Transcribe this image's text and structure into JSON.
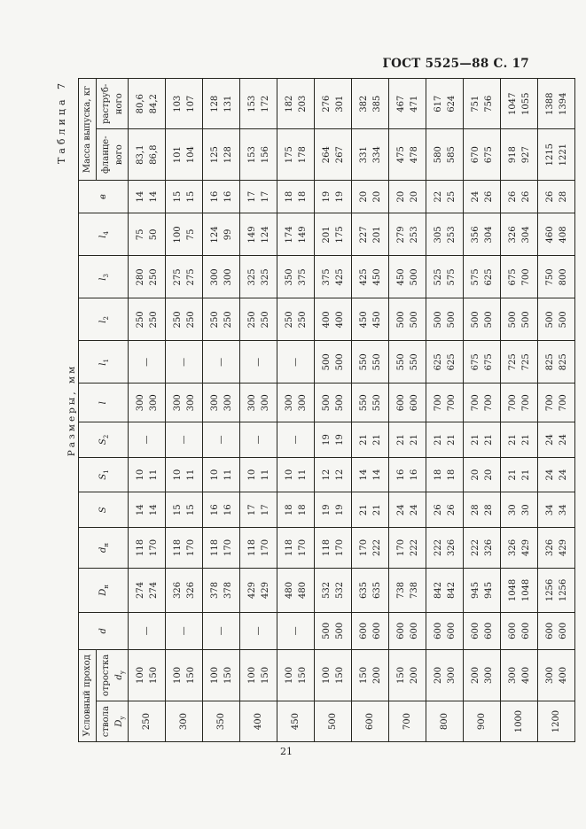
{
  "page": {
    "doc_ref": "ГОСТ 5525—88 С. 17",
    "page_number": "21",
    "table_caption": "Таблица 7",
    "units_label": "Размеры, мм"
  },
  "table": {
    "headers": {
      "group_pass": "Условный проход",
      "stvola": {
        "prefix": "ствола ",
        "main": "D",
        "sub": "у"
      },
      "otrostka": {
        "prefix": "отростка ",
        "main": "d",
        "sub": "у"
      },
      "d": {
        "main": "d",
        "sub": ""
      },
      "Dn": {
        "main": "D",
        "sub": "н"
      },
      "dn": {
        "main": "d",
        "sub": "н"
      },
      "S": {
        "main": "S",
        "sub": ""
      },
      "S1": {
        "main": "S",
        "sub": "1"
      },
      "S2": {
        "main": "S",
        "sub": "2"
      },
      "l": {
        "main": "l",
        "sub": ""
      },
      "l1": {
        "main": "l",
        "sub": "1"
      },
      "l2": {
        "main": "l",
        "sub": "2"
      },
      "l3": {
        "main": "l",
        "sub": "3"
      },
      "l4": {
        "main": "l",
        "sub": "4"
      },
      "v": "в",
      "group_mass": "Масса выпуска, кг",
      "mass_fl": "фланце-\nвого",
      "mass_r": "раструб-\nного"
    },
    "col_order": [
      "dy",
      "dotr",
      "d",
      "Dn",
      "dn",
      "S",
      "S1",
      "S2",
      "l",
      "l1",
      "l2",
      "l3",
      "l4",
      "v",
      "mfl",
      "mr"
    ],
    "rows": [
      {
        "dy": "250",
        "dotr": "100\n150",
        "d": "—",
        "Dn": "274\n274",
        "dn": "118\n170",
        "S": "14\n14",
        "S1": "10\n11",
        "S2": "—",
        "l": "300\n300",
        "l1": "—",
        "l2": "250\n250",
        "l3": "280\n250",
        "l4": "75\n50",
        "v": "14\n14",
        "mfl": "83,1\n86,8",
        "mr": "80,6\n84,2"
      },
      {
        "dy": "300",
        "dotr": "100\n150",
        "d": "—",
        "Dn": "326\n326",
        "dn": "118\n170",
        "S": "15\n15",
        "S1": "10\n11",
        "S2": "—",
        "l": "300\n300",
        "l1": "—",
        "l2": "250\n250",
        "l3": "275\n275",
        "l4": "100\n75",
        "v": "15\n15",
        "mfl": "101\n104",
        "mr": "103\n107"
      },
      {
        "dy": "350",
        "dotr": "100\n150",
        "d": "—",
        "Dn": "378\n378",
        "dn": "118\n170",
        "S": "16\n16",
        "S1": "10\n11",
        "S2": "—",
        "l": "300\n300",
        "l1": "—",
        "l2": "250\n250",
        "l3": "300\n300",
        "l4": "124\n99",
        "v": "16\n16",
        "mfl": "125\n128",
        "mr": "128\n131"
      },
      {
        "dy": "400",
        "dotr": "100\n150",
        "d": "—",
        "Dn": "429\n429",
        "dn": "118\n170",
        "S": "17\n17",
        "S1": "10\n11",
        "S2": "—",
        "l": "300\n300",
        "l1": "—",
        "l2": "250\n250",
        "l3": "325\n325",
        "l4": "149\n124",
        "v": "17\n17",
        "mfl": "153\n156",
        "mr": "153\n172"
      },
      {
        "dy": "450",
        "dotr": "100\n150",
        "d": "—",
        "Dn": "480\n480",
        "dn": "118\n170",
        "S": "18\n18",
        "S1": "10\n11",
        "S2": "—",
        "l": "300\n300",
        "l1": "—",
        "l2": "250\n250",
        "l3": "350\n375",
        "l4": "174\n149",
        "v": "18\n18",
        "mfl": "175\n178",
        "mr": "182\n203"
      },
      {
        "dy": "500",
        "dotr": "100\n150",
        "d": "500\n500",
        "Dn": "532\n532",
        "dn": "118\n170",
        "S": "19\n19",
        "S1": "12\n12",
        "S2": "19\n19",
        "l": "500\n500",
        "l1": "500\n500",
        "l2": "400\n400",
        "l3": "375\n425",
        "l4": "201\n175",
        "v": "19\n19",
        "mfl": "264\n267",
        "mr": "276\n301"
      },
      {
        "dy": "600",
        "dotr": "150\n200",
        "d": "600\n600",
        "Dn": "635\n635",
        "dn": "170\n222",
        "S": "21\n21",
        "S1": "14\n14",
        "S2": "21\n21",
        "l": "550\n550",
        "l1": "550\n550",
        "l2": "450\n450",
        "l3": "425\n450",
        "l4": "227\n201",
        "v": "20\n20",
        "mfl": "331\n334",
        "mr": "382\n385"
      },
      {
        "dy": "700",
        "dotr": "150\n200",
        "d": "600\n600",
        "Dn": "738\n738",
        "dn": "170\n222",
        "S": "24\n24",
        "S1": "16\n16",
        "S2": "21\n21",
        "l": "600\n600",
        "l1": "550\n550",
        "l2": "500\n500",
        "l3": "450\n500",
        "l4": "279\n253",
        "v": "20\n20",
        "mfl": "475\n478",
        "mr": "467\n471"
      },
      {
        "dy": "800",
        "dotr": "200\n300",
        "d": "600\n600",
        "Dn": "842\n842",
        "dn": "222\n326",
        "S": "26\n26",
        "S1": "18\n18",
        "S2": "21\n21",
        "l": "700\n700",
        "l1": "625\n625",
        "l2": "500\n500",
        "l3": "525\n575",
        "l4": "305\n253",
        "v": "22\n25",
        "mfl": "580\n585",
        "mr": "617\n624"
      },
      {
        "dy": "900",
        "dotr": "200\n300",
        "d": "600\n600",
        "Dn": "945\n945",
        "dn": "222\n326",
        "S": "28\n28",
        "S1": "20\n20",
        "S2": "21\n21",
        "l": "700\n700",
        "l1": "675\n675",
        "l2": "500\n500",
        "l3": "575\n625",
        "l4": "356\n304",
        "v": "24\n26",
        "mfl": "670\n675",
        "mr": "751\n756"
      },
      {
        "dy": "1000",
        "dotr": "300\n400",
        "d": "600\n600",
        "Dn": "1048\n1048",
        "dn": "326\n429",
        "S": "30\n30",
        "S1": "21\n21",
        "S2": "21\n21",
        "l": "700\n700",
        "l1": "725\n725",
        "l2": "500\n500",
        "l3": "675\n700",
        "l4": "326\n304",
        "v": "26\n26",
        "mfl": "918\n927",
        "mr": "1047\n1055"
      },
      {
        "dy": "1200",
        "dotr": "300\n400",
        "d": "600\n600",
        "Dn": "1256\n1256",
        "dn": "326\n429",
        "S": "34\n34",
        "S1": "24\n24",
        "S2": "24\n24",
        "l": "700\n700",
        "l1": "825\n825",
        "l2": "500\n500",
        "l3": "750\n800",
        "l4": "460\n408",
        "v": "26\n28",
        "mfl": "1215\n1221",
        "mr": "1388\n1394"
      }
    ]
  }
}
